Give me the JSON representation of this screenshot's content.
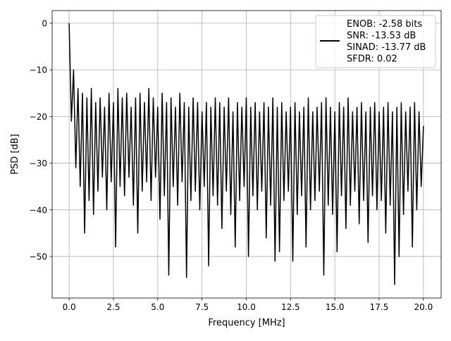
{
  "chart_data": {
    "type": "line",
    "title": "",
    "xlabel": "Frequency [MHz]",
    "ylabel": "PSD [dB]",
    "xlim": [
      -0.96,
      21.0
    ],
    "ylim": [
      -58.9,
      2.7
    ],
    "grid": true,
    "xticks": [
      0,
      2.5,
      5,
      7.5,
      10,
      12.5,
      15,
      17.5,
      20
    ],
    "xtick_labels": [
      "0.0",
      "2.5",
      "5.0",
      "7.5",
      "10.0",
      "12.5",
      "15.0",
      "17.5",
      "20.0"
    ],
    "yticks": [
      0,
      -10,
      -20,
      -30,
      -40,
      -50
    ],
    "ytick_labels": [
      "0",
      "−10",
      "−20",
      "−30",
      "−40",
      "−50"
    ],
    "legend_placement": "upper-right",
    "legend": [
      "ENOB: -2.58 bits",
      "SNR: -13.53 dB",
      "SINAD: -13.77 dB",
      "SFDR: 0.02"
    ],
    "line_color": "#000000",
    "series": [
      {
        "name": "PSD",
        "x_start": 0,
        "x_step": 0.125,
        "values": [
          0,
          -21,
          -10,
          -31,
          -14,
          -35,
          -15,
          -45,
          -16,
          -38,
          -14,
          -41,
          -17,
          -36,
          -16,
          -33,
          -18,
          -40,
          -15,
          -34,
          -17,
          -48,
          -14,
          -35,
          -16,
          -37,
          -15,
          -33,
          -18,
          -39,
          -16,
          -45,
          -15,
          -36,
          -17,
          -34,
          -14,
          -38,
          -16,
          -33,
          -18,
          -42,
          -15,
          -37,
          -17,
          -54,
          -16,
          -35,
          -18,
          -39,
          -15,
          -34,
          -17,
          -54.5,
          -18,
          -38,
          -16,
          -36,
          -17,
          -40,
          -19,
          -35,
          -17,
          -52,
          -18,
          -37,
          -16,
          -39,
          -17,
          -44,
          -18,
          -36,
          -16,
          -41,
          -19,
          -48,
          -17,
          -38,
          -18,
          -35,
          -16,
          -50,
          -18,
          -37,
          -17,
          -40,
          -19,
          -36,
          -17,
          -46,
          -18,
          -39,
          -16,
          -51,
          -18,
          -49,
          -17,
          -38,
          -19,
          -36,
          -18,
          -51,
          -17,
          -41,
          -19,
          -37,
          -18,
          -48,
          -16,
          -40,
          -19,
          -38,
          -18,
          -36,
          -17,
          -54,
          -16,
          -39,
          -18,
          -41,
          -19,
          -49,
          -17,
          -37,
          -18,
          -44,
          -16,
          -39,
          -19,
          -36,
          -18,
          -43,
          -17,
          -38,
          -19,
          -47,
          -18,
          -37,
          -17,
          -40,
          -19,
          -38,
          -18,
          -45,
          -17,
          -39,
          -19,
          -56,
          -18,
          -50,
          -17,
          -41,
          -19,
          -36,
          -18,
          -48,
          -17,
          -40,
          -19,
          -35,
          -22
        ]
      }
    ]
  }
}
